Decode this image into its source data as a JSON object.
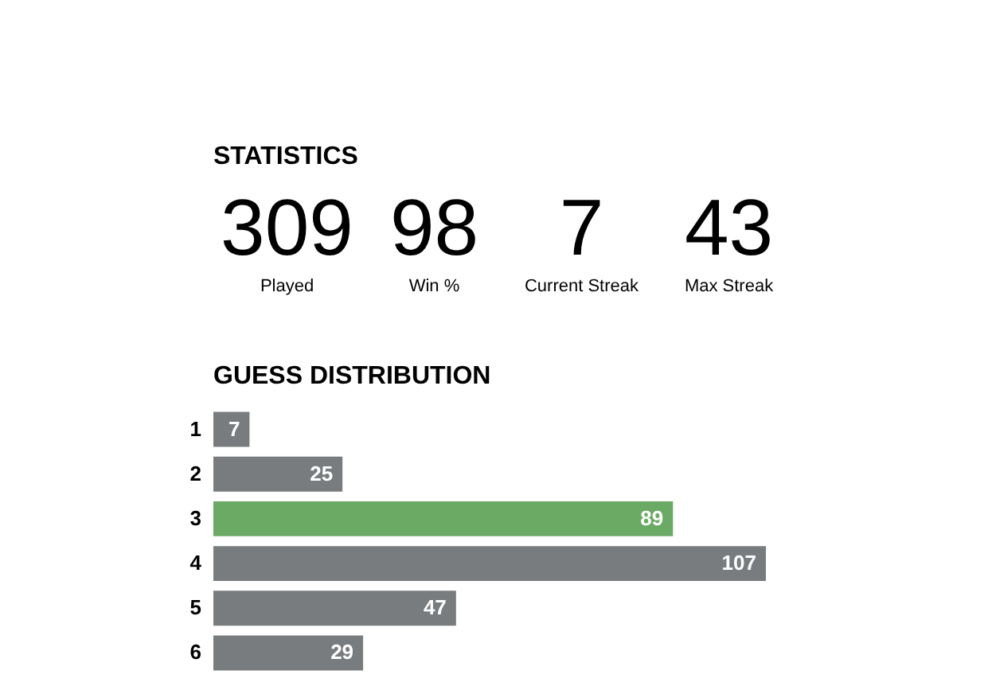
{
  "chart_data": [
    {
      "type": "other",
      "title": "STATISTICS",
      "categories": [
        "Played",
        "Win %",
        "Current Streak",
        "Max Streak"
      ],
      "values": [
        309,
        98,
        7,
        43
      ],
      "data_labels": true
    },
    {
      "type": "bar",
      "title": "GUESS DISTRIBUTION",
      "orientation": "horizontal",
      "categories": [
        "1",
        "2",
        "3",
        "4",
        "5",
        "6"
      ],
      "values": [
        7,
        25,
        89,
        107,
        47,
        29
      ],
      "colors": [
        "#787c7e",
        "#787c7e",
        "#6aaa64",
        "#787c7e",
        "#787c7e",
        "#787c7e"
      ],
      "data_labels": true,
      "tick_labels": "y"
    }
  ]
}
